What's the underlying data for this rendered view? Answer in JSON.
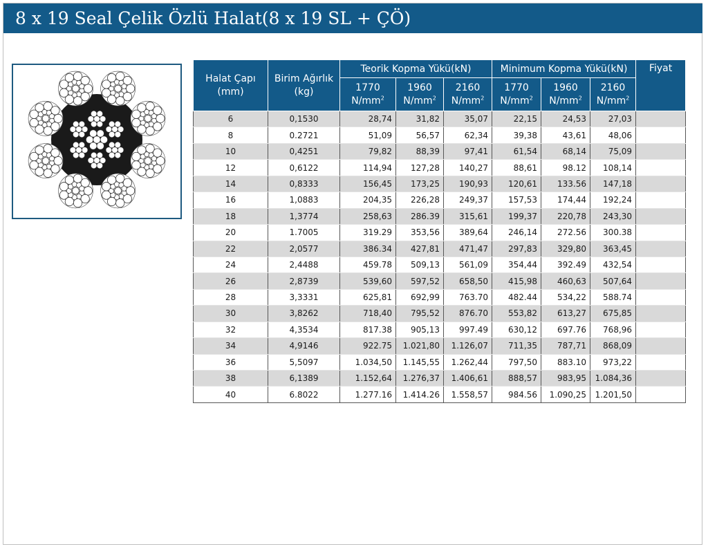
{
  "title": "8 x 19 Seal Çelik Özlü Halat(8 x 19 SL + ÇÖ)",
  "table": {
    "headers": {
      "diameter": "Halat Çapı (mm)",
      "diameter_line1": "Halat Çapı",
      "diameter_line2": "(mm)",
      "weight_line1": "Birim Ağırlık",
      "weight_line2": "(kg)",
      "theoretical": "Teorik Kopma Yükü(kN)",
      "minimum": "Minimum Kopma Yükü(kN)",
      "price": "Fiyat",
      "grades": [
        "1770",
        "1960",
        "2160",
        "1770",
        "1960",
        "2160"
      ],
      "unit": "N/mm",
      "unit_exp": "2"
    },
    "rows": [
      [
        "6",
        "0,1530",
        "28,74",
        "31,82",
        "35,07",
        "22,15",
        "24,53",
        "27,03",
        ""
      ],
      [
        "8",
        "0.2721",
        "51,09",
        "56,57",
        "62,34",
        "39,38",
        "43,61",
        "48,06",
        ""
      ],
      [
        "10",
        "0,4251",
        "79,82",
        "88,39",
        "97,41",
        "61,54",
        "68,14",
        "75,09",
        ""
      ],
      [
        "12",
        "0,6122",
        "114,94",
        "127,28",
        "140,27",
        "88,61",
        "98.12",
        "108,14",
        ""
      ],
      [
        "14",
        "0,8333",
        "156,45",
        "173,25",
        "190,93",
        "120,61",
        "133.56",
        "147,18",
        ""
      ],
      [
        "16",
        "1,0883",
        "204,35",
        "226,28",
        "249,37",
        "157,53",
        "174,44",
        "192,24",
        ""
      ],
      [
        "18",
        "1,3774",
        "258,63",
        "286.39",
        "315,61",
        "199,37",
        "220,78",
        "243,30",
        ""
      ],
      [
        "20",
        "1.7005",
        "319.29",
        "353,56",
        "389,64",
        "246,14",
        "272.56",
        "300.38",
        ""
      ],
      [
        "22",
        "2,0577",
        "386.34",
        "427,81",
        "471,47",
        "297,83",
        "329,80",
        "363,45",
        ""
      ],
      [
        "24",
        "2,4488",
        "459.78",
        "509,13",
        "561,09",
        "354,44",
        "392.49",
        "432,54",
        ""
      ],
      [
        "26",
        "2,8739",
        "539,60",
        "597,52",
        "658,50",
        "415,98",
        "460,63",
        "507,64",
        ""
      ],
      [
        "28",
        "3,3331",
        "625,81",
        "692,99",
        "763.70",
        "482.44",
        "534,22",
        "588.74",
        ""
      ],
      [
        "30",
        "3,8262",
        "718,40",
        "795,52",
        "876.70",
        "553,82",
        "613,27",
        "675,85",
        ""
      ],
      [
        "32",
        "4,3534",
        "817.38",
        "905,13",
        "997.49",
        "630,12",
        "697.76",
        "768,96",
        ""
      ],
      [
        "34",
        "4,9146",
        "922.75",
        "1.021,80",
        "1.126,07",
        "711,35",
        "787,71",
        "868,09",
        ""
      ],
      [
        "36",
        "5,5097",
        "1.034,50",
        "1.145,55",
        "1.262,44",
        "797,50",
        "883.10",
        "973,22",
        ""
      ],
      [
        "38",
        "6,1389",
        "1.152,64",
        "1.276,37",
        "1.406,61",
        "888,57",
        "983,95",
        "1.084,36",
        ""
      ],
      [
        "40",
        "6.8022",
        "1.277.16",
        "1.414.26",
        "1.558,57",
        "984.56",
        "1.090,25",
        "1.201,50",
        ""
      ]
    ]
  },
  "colors": {
    "header_bg": "#135a89",
    "row_shade": "#d9d9d9",
    "image_border": "#1e5a80"
  },
  "image": {
    "icon": "wire-rope-cross-section-icon"
  }
}
